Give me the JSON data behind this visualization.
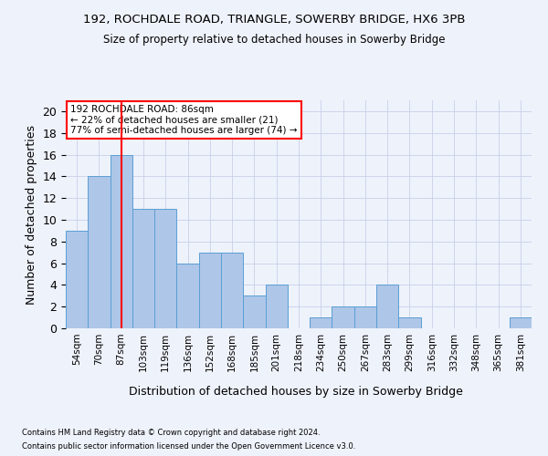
{
  "title1": "192, ROCHDALE ROAD, TRIANGLE, SOWERBY BRIDGE, HX6 3PB",
  "title2": "Size of property relative to detached houses in Sowerby Bridge",
  "xlabel": "Distribution of detached houses by size in Sowerby Bridge",
  "ylabel": "Number of detached properties",
  "categories": [
    "54sqm",
    "70sqm",
    "87sqm",
    "103sqm",
    "119sqm",
    "136sqm",
    "152sqm",
    "168sqm",
    "185sqm",
    "201sqm",
    "218sqm",
    "234sqm",
    "250sqm",
    "267sqm",
    "283sqm",
    "299sqm",
    "316sqm",
    "332sqm",
    "348sqm",
    "365sqm",
    "381sqm"
  ],
  "values": [
    9,
    14,
    16,
    11,
    11,
    6,
    7,
    7,
    3,
    4,
    0,
    1,
    2,
    2,
    4,
    1,
    0,
    0,
    0,
    0,
    1
  ],
  "bar_color": "#aec6e8",
  "bar_edge_color": "#5a9fd4",
  "red_line_index": 2,
  "ylim": [
    0,
    21
  ],
  "yticks": [
    0,
    2,
    4,
    6,
    8,
    10,
    12,
    14,
    16,
    18,
    20
  ],
  "annotation_title": "192 ROCHDALE ROAD: 86sqm",
  "annotation_line1": "← 22% of detached houses are smaller (21)",
  "annotation_line2": "77% of semi-detached houses are larger (74) →",
  "footer1": "Contains HM Land Registry data © Crown copyright and database right 2024.",
  "footer2": "Contains public sector information licensed under the Open Government Licence v3.0.",
  "background_color": "#eef2fb",
  "plot_bg_color": "#eef2fb",
  "grid_color": "#c8d0e8"
}
